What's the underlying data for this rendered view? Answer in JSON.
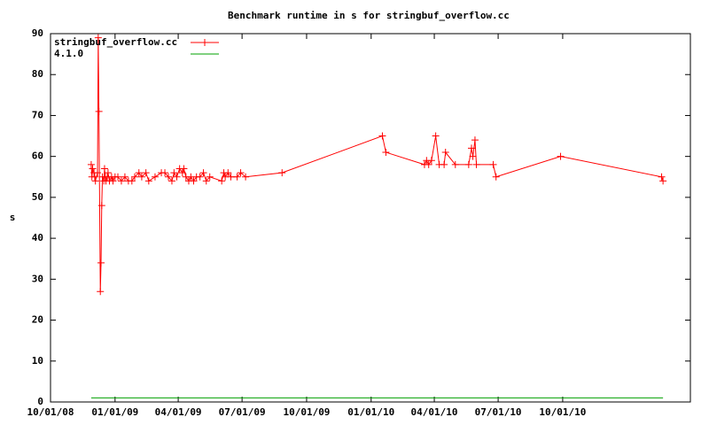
{
  "chart_data": {
    "type": "line",
    "title": "Benchmark runtime in s for stringbuf_overflow.cc",
    "y_label": "s",
    "xlim": [
      "2008-10-01",
      "2011-04-01"
    ],
    "xticks": [
      {
        "value": "2008-10-01",
        "label": "10/01/08"
      },
      {
        "value": "2009-01-01",
        "label": "01/01/09"
      },
      {
        "value": "2009-04-01",
        "label": "04/01/09"
      },
      {
        "value": "2009-07-01",
        "label": "07/01/09"
      },
      {
        "value": "2009-10-01",
        "label": "10/01/09"
      },
      {
        "value": "2010-01-01",
        "label": "01/01/10"
      },
      {
        "value": "2010-04-01",
        "label": "04/01/10"
      },
      {
        "value": "2010-07-01",
        "label": "07/01/10"
      },
      {
        "value": "2010-10-01",
        "label": "10/01/10"
      }
    ],
    "ylim": [
      0,
      90
    ],
    "yticks": [
      0,
      10,
      20,
      30,
      40,
      50,
      60,
      70,
      80,
      90
    ],
    "legend": "top-left",
    "series": [
      {
        "name": "stringbuf_overflow.cc",
        "color": "#ff0000",
        "marker": "plus",
        "x": [
          "2008-11-28",
          "2008-11-29",
          "2008-11-30",
          "2008-12-02",
          "2008-12-03",
          "2008-12-04",
          "2008-12-07",
          "2008-12-08",
          "2008-12-09",
          "2008-12-11",
          "2008-12-12",
          "2008-12-13",
          "2008-12-14",
          "2008-12-16",
          "2008-12-17",
          "2008-12-18",
          "2008-12-19",
          "2008-12-21",
          "2008-12-22",
          "2008-12-24",
          "2008-12-27",
          "2008-12-29",
          "2009-01-01",
          "2009-01-05",
          "2009-01-10",
          "2009-01-15",
          "2009-01-20",
          "2009-01-25",
          "2009-01-29",
          "2009-02-04",
          "2009-02-08",
          "2009-02-14",
          "2009-02-18",
          "2009-02-27",
          "2009-03-08",
          "2009-03-13",
          "2009-03-18",
          "2009-03-23",
          "2009-03-26",
          "2009-03-30",
          "2009-04-03",
          "2009-04-07",
          "2009-04-09",
          "2009-04-12",
          "2009-04-16",
          "2009-04-19",
          "2009-04-23",
          "2009-04-27",
          "2009-05-02",
          "2009-05-07",
          "2009-05-11",
          "2009-05-16",
          "2009-06-02",
          "2009-06-05",
          "2009-06-07",
          "2009-06-11",
          "2009-06-15",
          "2009-06-24",
          "2009-06-29",
          "2009-07-06",
          "2009-08-27",
          "2010-01-17",
          "2010-01-22",
          "2010-03-18",
          "2010-03-21",
          "2010-03-24",
          "2010-03-28",
          "2010-04-03",
          "2010-04-08",
          "2010-04-15",
          "2010-04-17",
          "2010-05-01",
          "2010-05-20",
          "2010-05-24",
          "2010-05-26",
          "2010-05-29",
          "2010-05-31",
          "2010-06-24",
          "2010-06-28",
          "2010-09-28",
          "2011-02-19",
          "2011-02-21"
        ],
        "values": [
          58,
          55,
          57,
          56,
          55,
          54,
          56,
          89,
          71,
          27,
          34,
          48,
          55,
          54,
          57,
          55,
          54,
          55,
          56,
          54,
          55,
          54,
          55,
          55,
          54,
          55,
          54,
          54,
          55,
          56,
          55,
          56,
          54,
          55,
          56,
          56,
          55,
          54,
          56,
          55,
          57,
          56,
          57,
          55,
          54,
          55,
          54,
          55,
          55,
          56,
          54,
          55,
          54,
          56,
          55,
          56,
          55,
          55,
          56,
          55,
          56,
          65,
          61,
          58,
          59,
          58,
          59,
          65,
          58,
          58,
          61,
          58,
          58,
          62,
          60,
          64,
          58,
          58,
          55,
          60,
          55,
          54
        ]
      },
      {
        "name": "4.1.0",
        "color": "#00a000",
        "marker": "none",
        "x": [
          "2008-11-28",
          "2011-02-21"
        ],
        "values": [
          1,
          1
        ]
      }
    ]
  }
}
